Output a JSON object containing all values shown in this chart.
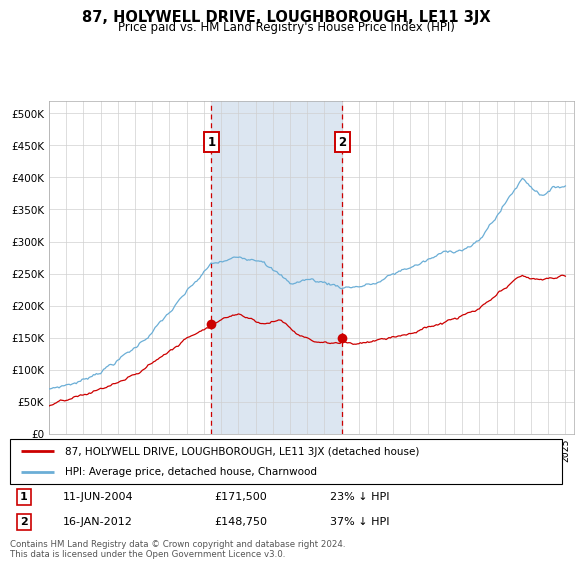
{
  "title": "87, HOLYWELL DRIVE, LOUGHBOROUGH, LE11 3JX",
  "subtitle": "Price paid vs. HM Land Registry's House Price Index (HPI)",
  "background_shaded_start": 2004.44,
  "background_shaded_end": 2012.04,
  "sale1_date_num": 2004.44,
  "sale1_label": "1",
  "sale1_price": 171500,
  "sale2_date_num": 2012.04,
  "sale2_label": "2",
  "sale2_price": 148750,
  "hpi_color": "#6baed6",
  "price_color": "#cc0000",
  "shaded_color": "#dce6f1",
  "annotation_box_color": "#cc0000",
  "legend_label_red": "87, HOLYWELL DRIVE, LOUGHBOROUGH, LE11 3JX (detached house)",
  "legend_label_blue": "HPI: Average price, detached house, Charnwood",
  "footer": "Contains HM Land Registry data © Crown copyright and database right 2024.\nThis data is licensed under the Open Government Licence v3.0.",
  "ylim_min": 0,
  "ylim_max": 520000,
  "note1_label": "1",
  "note1_date": "11-JUN-2004",
  "note1_price": "£171,500",
  "note1_pct": "23% ↓ HPI",
  "note2_label": "2",
  "note2_date": "16-JAN-2012",
  "note2_price": "£148,750",
  "note2_pct": "37% ↓ HPI",
  "xlim_start": 1995,
  "xlim_end": 2025.5
}
